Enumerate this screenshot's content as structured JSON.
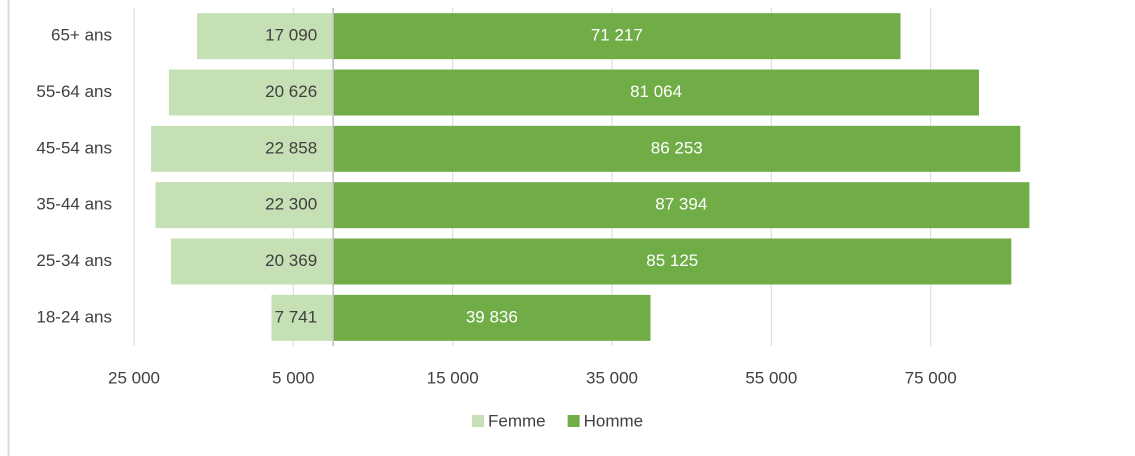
{
  "chart_data": {
    "type": "pyramid",
    "categories": [
      "65+ ans",
      "55-64 ans",
      "45-54 ans",
      "35-44 ans",
      "25-34 ans",
      "18-24 ans"
    ],
    "series": [
      {
        "name": "Femme",
        "color": "#c5e0b4",
        "label_color": "#404040",
        "values": [
          -17090,
          -20626,
          -22858,
          -22300,
          -20369,
          -7741
        ],
        "value_labels": [
          "17 090",
          "20 626",
          "22 858",
          "22 300",
          "20 369",
          "7 741"
        ]
      },
      {
        "name": "Homme",
        "color": "#70ad47",
        "label_color": "#ffffff",
        "values": [
          71217,
          81064,
          86253,
          87394,
          85125,
          39836
        ],
        "value_labels": [
          "71 217",
          "81 064",
          "86 253",
          "87 394",
          "85 125",
          "39 836"
        ]
      }
    ],
    "xlim": [
      -25000,
      95000
    ],
    "xticks": [
      {
        "value": -25000,
        "label": "25 000"
      },
      {
        "value": -5000,
        "label": "5 000"
      },
      {
        "value": 15000,
        "label": "15 000"
      },
      {
        "value": 35000,
        "label": "35 000"
      },
      {
        "value": 55000,
        "label": "55 000"
      },
      {
        "value": 75000,
        "label": "75 000"
      }
    ],
    "grid": true,
    "legend": "bottom"
  }
}
